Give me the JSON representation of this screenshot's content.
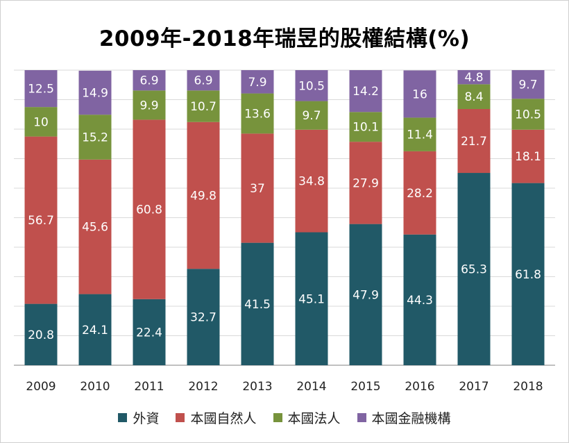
{
  "chart_data": {
    "type": "bar",
    "stacked": true,
    "title": "2009年-2018年瑞昱的股權結構(%)",
    "categories": [
      "2009",
      "2010",
      "2011",
      "2012",
      "2013",
      "2014",
      "2015",
      "2016",
      "2017",
      "2018"
    ],
    "series": [
      {
        "name": "外資",
        "color": "#215967",
        "values": [
          20.8,
          24.1,
          22.4,
          32.7,
          41.5,
          45.1,
          47.9,
          44.3,
          65.3,
          61.8
        ]
      },
      {
        "name": "本國自然人",
        "color": "#c0504d",
        "values": [
          56.7,
          45.6,
          60.8,
          49.8,
          37,
          34.8,
          27.9,
          28.2,
          21.7,
          18.1
        ]
      },
      {
        "name": "本國法人",
        "color": "#77933c",
        "values": [
          10,
          15.2,
          9.9,
          10.7,
          13.6,
          9.7,
          10.1,
          11.4,
          8.4,
          10.5
        ]
      },
      {
        "name": "本國金融機構",
        "color": "#8064a2",
        "values": [
          12.5,
          14.9,
          6.9,
          6.9,
          7.9,
          10.5,
          14.2,
          16,
          4.8,
          9.7
        ]
      }
    ],
    "ylim": [
      0,
      100
    ],
    "grid": true,
    "legend": "bottom",
    "label_color": "#ffffff"
  }
}
